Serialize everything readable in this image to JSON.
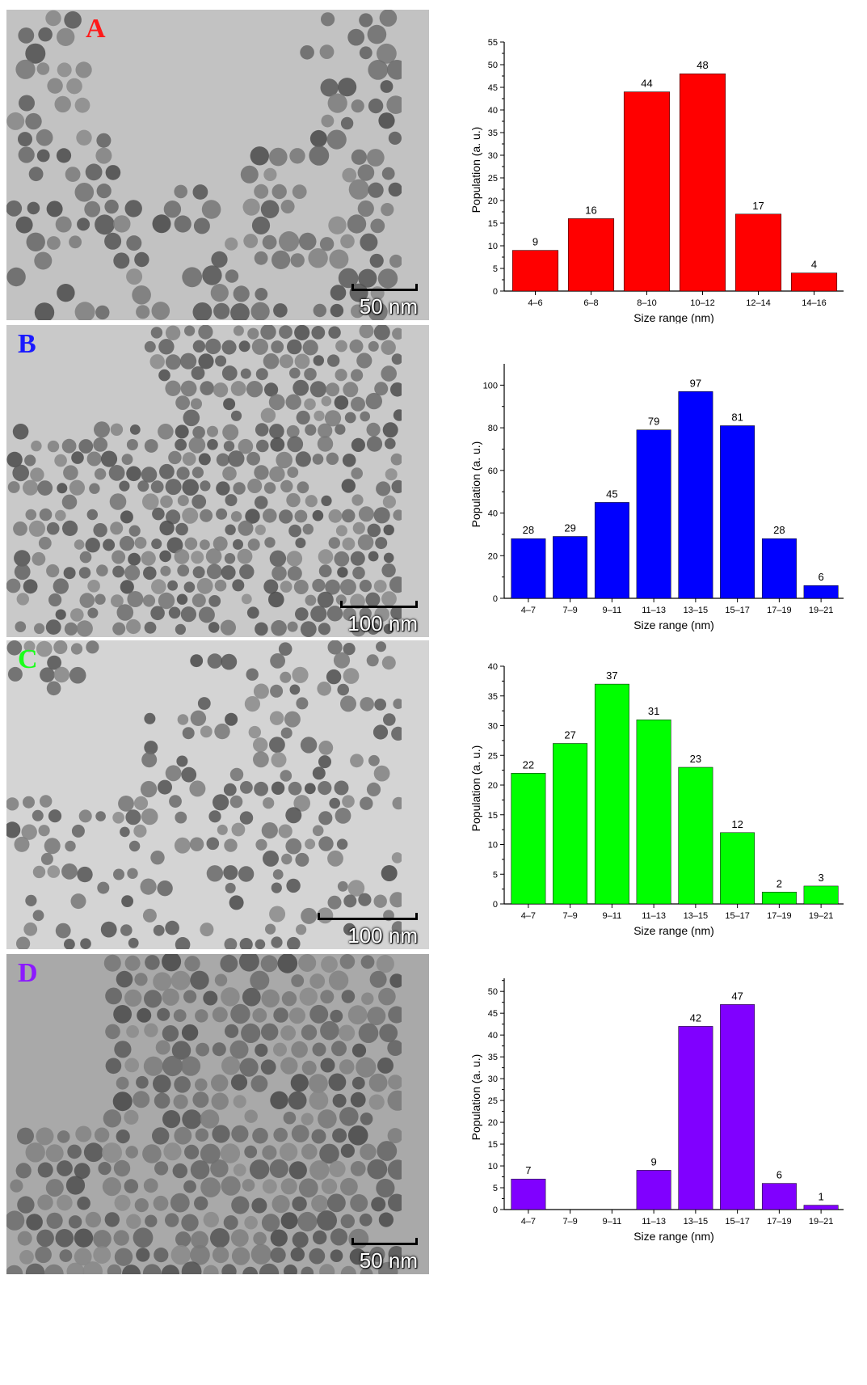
{
  "panels": [
    {
      "letter": "A",
      "letter_color": "#ff1a1a",
      "scale_label": "50 nm",
      "tem_background": "#c2c2c2",
      "particle_density": "medium",
      "chart_data": {
        "type": "bar",
        "categories": [
          "4–6",
          "6–8",
          "8–10",
          "10–12",
          "12–14",
          "14–16"
        ],
        "values": [
          9,
          16,
          44,
          48,
          17,
          4
        ],
        "xlabel": "Size range (nm)",
        "ylabel": "Population (a. u.)",
        "ylim": [
          0,
          55
        ],
        "yticks": [
          0,
          5,
          10,
          15,
          20,
          25,
          30,
          35,
          40,
          45,
          50,
          55
        ],
        "bar_color": "#ff0000",
        "data_labels": true,
        "grid": false
      }
    },
    {
      "letter": "B",
      "letter_color": "#1a1aff",
      "scale_label": "100 nm",
      "tem_background": "#c9c9c9",
      "particle_density": "high",
      "chart_data": {
        "type": "bar",
        "categories": [
          "4–7",
          "7–9",
          "9–11",
          "11–13",
          "13–15",
          "15–17",
          "17–19",
          "19–21"
        ],
        "values": [
          28,
          29,
          45,
          79,
          97,
          81,
          28,
          6
        ],
        "xlabel": "Size range (nm)",
        "ylabel": "Population (a. u.)",
        "ylim": [
          0,
          110
        ],
        "yticks": [
          0,
          20,
          40,
          60,
          80,
          100
        ],
        "bar_color": "#0000ff",
        "data_labels": true,
        "grid": false
      }
    },
    {
      "letter": "C",
      "letter_color": "#1aff1a",
      "scale_label": "100 nm",
      "tem_background": "#d4d4d4",
      "particle_density": "low",
      "chart_data": {
        "type": "bar",
        "categories": [
          "4–7",
          "7–9",
          "9–11",
          "11–13",
          "13–15",
          "15–17",
          "17–19",
          "19–21"
        ],
        "values": [
          22,
          27,
          37,
          31,
          23,
          12,
          2,
          3
        ],
        "xlabel": "Size range (nm)",
        "ylabel": "Population (a. u.)",
        "ylim": [
          0,
          40
        ],
        "yticks": [
          0,
          5,
          10,
          15,
          20,
          25,
          30,
          35,
          40
        ],
        "bar_color": "#00ff00",
        "data_labels": true,
        "grid": false
      }
    },
    {
      "letter": "D",
      "letter_color": "#8c1aff",
      "scale_label": "50 nm",
      "tem_background": "#a9a9a9",
      "particle_density": "very-high",
      "chart_data": {
        "type": "bar",
        "categories": [
          "4–7",
          "7–9",
          "9–11",
          "11–13",
          "13–15",
          "15–17",
          "17–19",
          "19–21"
        ],
        "values": [
          7,
          0,
          0,
          9,
          42,
          47,
          6,
          1
        ],
        "xlabel": "Size range (nm)",
        "ylabel": "Population (a. u.)",
        "ylim": [
          0,
          53
        ],
        "yticks": [
          0,
          5,
          10,
          15,
          20,
          25,
          30,
          35,
          40,
          45,
          50
        ],
        "bar_color": "#8000ff",
        "data_labels": true,
        "grid": false
      }
    }
  ]
}
